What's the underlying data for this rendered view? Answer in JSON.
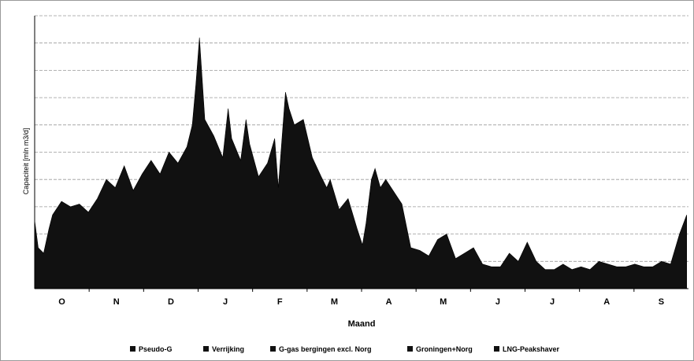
{
  "chart_data": {
    "type": "area",
    "title": "",
    "xlabel": "Maand",
    "ylabel": "Capaciteit [mln m3/d]",
    "months": [
      "O",
      "N",
      "D",
      "J",
      "F",
      "M",
      "A",
      "M",
      "J",
      "J",
      "A",
      "S"
    ],
    "grid": true,
    "legend_position": "bottom",
    "ylim": [
      0,
      100
    ],
    "legend": [
      {
        "name": "Pseudo-G"
      },
      {
        "name": "Verrijking"
      },
      {
        "name": "G-gas bergingen excl. Norg"
      },
      {
        "name": "Groningen+Norg"
      },
      {
        "name": "LNG-Peakshaver"
      }
    ],
    "daily_profile_points": [
      [
        0,
        25
      ],
      [
        2,
        15
      ],
      [
        5,
        13
      ],
      [
        8,
        22
      ],
      [
        10,
        27
      ],
      [
        15,
        32
      ],
      [
        20,
        30
      ],
      [
        25,
        31
      ],
      [
        30,
        28
      ],
      [
        35,
        33
      ],
      [
        40,
        40
      ],
      [
        45,
        37
      ],
      [
        50,
        45
      ],
      [
        55,
        36
      ],
      [
        60,
        42
      ],
      [
        65,
        47
      ],
      [
        70,
        42
      ],
      [
        75,
        50
      ],
      [
        80,
        46
      ],
      [
        85,
        52
      ],
      [
        88,
        60
      ],
      [
        90,
        75
      ],
      [
        92,
        92
      ],
      [
        95,
        62
      ],
      [
        100,
        56
      ],
      [
        105,
        48
      ],
      [
        108,
        66
      ],
      [
        110,
        55
      ],
      [
        115,
        47
      ],
      [
        118,
        62
      ],
      [
        120,
        53
      ],
      [
        125,
        41
      ],
      [
        130,
        46
      ],
      [
        134,
        55
      ],
      [
        136,
        37
      ],
      [
        140,
        72
      ],
      [
        142,
        66
      ],
      [
        145,
        60
      ],
      [
        150,
        62
      ],
      [
        155,
        48
      ],
      [
        160,
        41
      ],
      [
        163,
        37
      ],
      [
        165,
        40
      ],
      [
        170,
        29
      ],
      [
        175,
        33
      ],
      [
        180,
        22
      ],
      [
        183,
        16
      ],
      [
        185,
        24
      ],
      [
        188,
        40
      ],
      [
        190,
        44
      ],
      [
        193,
        37
      ],
      [
        196,
        40
      ],
      [
        200,
        36
      ],
      [
        205,
        31
      ],
      [
        210,
        15
      ],
      [
        215,
        14
      ],
      [
        220,
        12
      ],
      [
        225,
        18
      ],
      [
        230,
        20
      ],
      [
        235,
        11
      ],
      [
        240,
        13
      ],
      [
        245,
        15
      ],
      [
        250,
        9
      ],
      [
        255,
        8
      ],
      [
        260,
        8
      ],
      [
        265,
        13
      ],
      [
        270,
        10
      ],
      [
        275,
        17
      ],
      [
        280,
        10
      ],
      [
        285,
        7
      ],
      [
        290,
        7
      ],
      [
        295,
        9
      ],
      [
        300,
        7
      ],
      [
        305,
        8
      ],
      [
        310,
        7
      ],
      [
        315,
        10
      ],
      [
        320,
        9
      ],
      [
        325,
        8
      ],
      [
        330,
        8
      ],
      [
        335,
        9
      ],
      [
        340,
        8
      ],
      [
        345,
        8
      ],
      [
        350,
        10
      ],
      [
        355,
        9
      ],
      [
        360,
        20
      ],
      [
        364,
        27
      ]
    ]
  }
}
